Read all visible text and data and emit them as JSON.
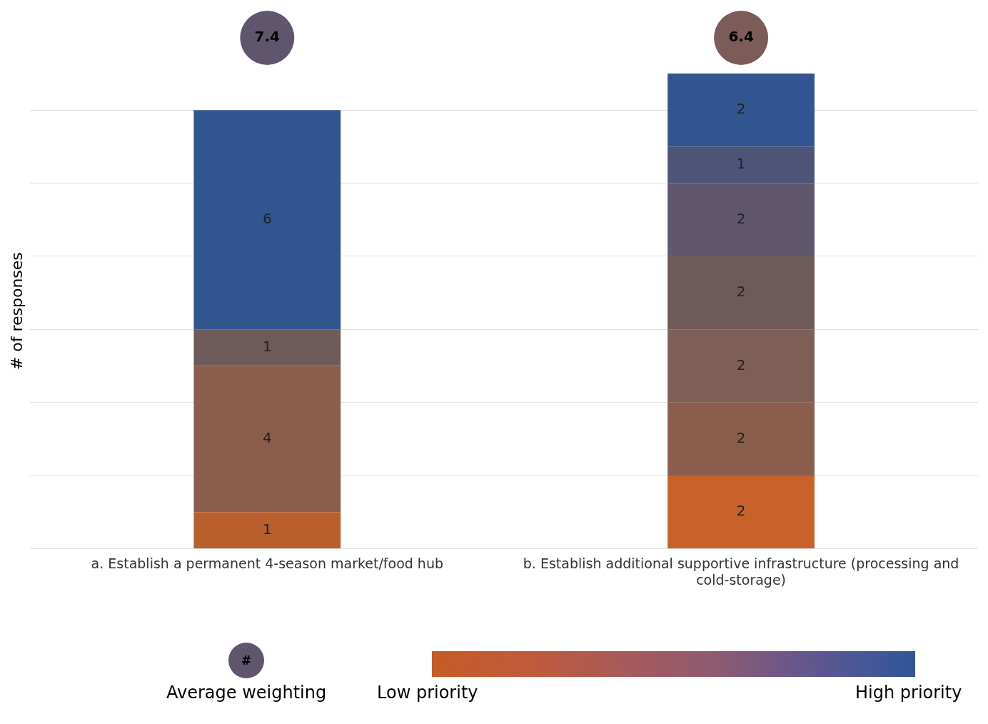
{
  "chart_data": {
    "type": "bar",
    "stacked": true,
    "relative": false,
    "ylabel": "# of responses",
    "categories": [
      "a. Establish a permanent 4-season market/food hub",
      "b. Establish additional supportive infrastructure (processing and cold-storage)"
    ],
    "series": [
      {
        "colors": [
          "#b85f2c",
          "#c8622a"
        ],
        "values": [
          1,
          2
        ]
      },
      {
        "color": "#8a5d4d",
        "values": [
          4,
          2
        ]
      },
      {
        "color": "#7e5e55",
        "values": [
          null,
          2
        ]
      },
      {
        "color": "#6e5a58",
        "values": [
          1,
          2
        ]
      },
      {
        "color": "#60566e",
        "values": [
          null,
          2
        ]
      },
      {
        "color": "#4e5478",
        "values": [
          null,
          1
        ]
      },
      {
        "color": "#31558f",
        "values": [
          6,
          2
        ]
      }
    ],
    "ylim": [
      0,
      13
    ],
    "yticks": [
      0,
      2,
      4,
      6,
      8,
      10,
      12
    ],
    "tick_labels": "x",
    "grid": "y",
    "legend": false,
    "data_labels": true,
    "annotations": [
      "7.4",
      "6.4",
      "#",
      "Average weighting",
      "Low priority",
      "High priority"
    ]
  }
}
